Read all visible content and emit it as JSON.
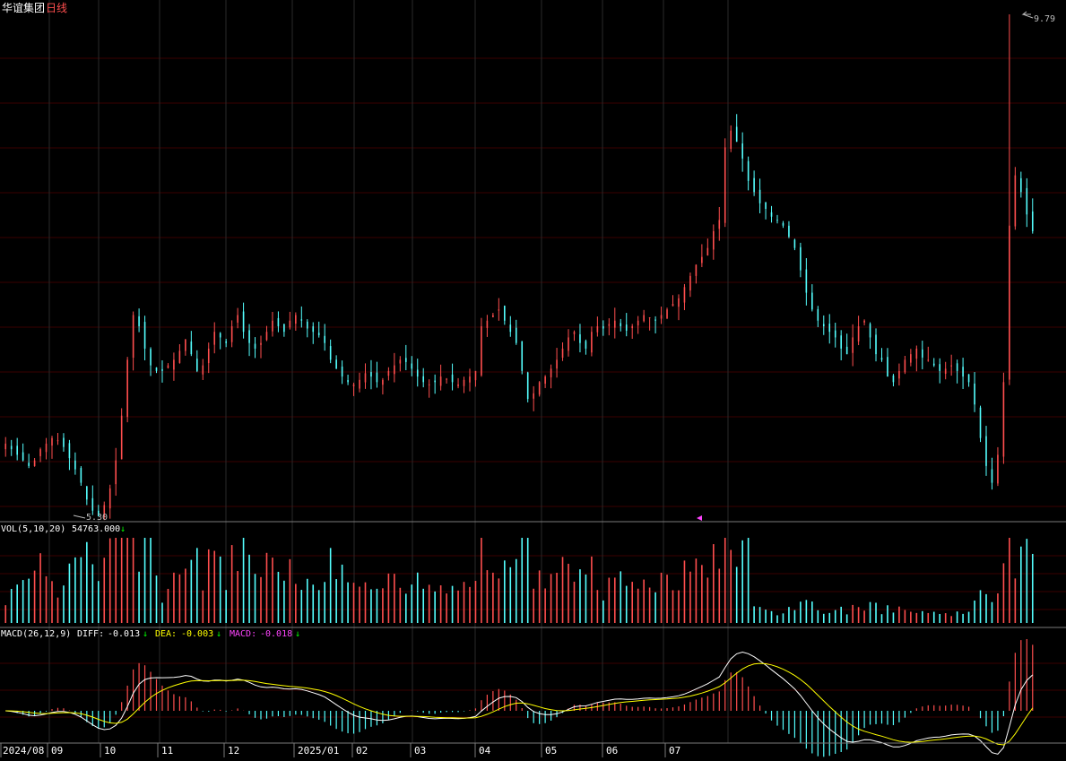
{
  "header": {
    "stock_name": "华谊集团",
    "period": "日线"
  },
  "price_panel": {
    "high_label": "9.79",
    "low_label": "5.30"
  },
  "vol_panel": {
    "indicator": "VOL(5,10,20)",
    "value": "54763.000"
  },
  "macd_panel": {
    "indicator": "MACD(26,12,9)",
    "diff_label": "DIFF:",
    "diff_value": "-0.013",
    "dea_label": "DEA:",
    "dea_value": "-0.003",
    "macd_label": "MACD:",
    "macd_value": "-0.018"
  },
  "x_axis": {
    "labels": [
      "2024/08",
      "09",
      "10",
      "11",
      "12",
      "2025/01",
      "02",
      "03",
      "04",
      "05",
      "06",
      "07"
    ]
  },
  "colors": {
    "up": "#ff4e4e",
    "down": "#54ffff",
    "diff": "#ffffff",
    "dea": "#ffff00",
    "macd_text": "#ff44ff",
    "grid": "#3a0000"
  },
  "chart_data": {
    "type": "candlestick",
    "title": "华谊集团 日线",
    "ylim": [
      5.3,
      9.79
    ],
    "price_high": 9.79,
    "price_low": 5.3,
    "vol_latest": 54763.0,
    "close_series": [
      5.95,
      5.9,
      5.85,
      5.8,
      5.75,
      5.8,
      5.9,
      5.95,
      6.0,
      5.98,
      5.92,
      5.82,
      5.72,
      5.6,
      5.45,
      5.35,
      5.3,
      5.4,
      5.55,
      5.8,
      6.2,
      6.7,
      7.1,
      7.0,
      6.8,
      6.65,
      6.6,
      6.6,
      6.65,
      6.7,
      6.78,
      6.88,
      6.75,
      6.6,
      6.65,
      6.8,
      6.95,
      6.9,
      6.85,
      7.0,
      7.1,
      6.95,
      6.85,
      6.8,
      6.85,
      6.95,
      7.05,
      7.0,
      6.95,
      7.05,
      7.1,
      7.05,
      6.98,
      6.95,
      6.92,
      6.85,
      6.7,
      6.62,
      6.55,
      6.5,
      6.48,
      6.52,
      6.58,
      6.55,
      6.5,
      6.52,
      6.6,
      6.65,
      6.7,
      6.68,
      6.62,
      6.55,
      6.5,
      6.48,
      6.5,
      6.55,
      6.53,
      6.5,
      6.48,
      6.52,
      6.55,
      6.6,
      7.0,
      7.05,
      7.1,
      7.15,
      7.05,
      6.95,
      6.85,
      6.6,
      6.35,
      6.4,
      6.5,
      6.55,
      6.62,
      6.7,
      6.8,
      6.9,
      6.95,
      6.85,
      6.8,
      6.95,
      7.0,
      6.98,
      7.02,
      7.05,
      7.0,
      6.96,
      7.0,
      7.05,
      7.1,
      7.08,
      7.05,
      7.1,
      7.15,
      7.2,
      7.25,
      7.35,
      7.45,
      7.55,
      7.62,
      7.7,
      7.85,
      7.95,
      8.6,
      8.75,
      8.65,
      8.5,
      8.3,
      8.2,
      8.1,
      8.05,
      7.98,
      7.95,
      7.9,
      7.8,
      7.7,
      7.5,
      7.3,
      7.15,
      7.05,
      7.0,
      6.95,
      6.9,
      6.8,
      6.75,
      6.9,
      7.0,
      7.05,
      6.9,
      6.75,
      6.7,
      6.55,
      6.5,
      6.6,
      6.7,
      6.75,
      6.8,
      6.72,
      6.7,
      6.65,
      6.6,
      6.62,
      6.65,
      6.6,
      6.55,
      6.5,
      6.3,
      6.0,
      5.75,
      5.6,
      5.85,
      6.5,
      7.9,
      8.35,
      8.2,
      8.0,
      7.85
    ]
  }
}
